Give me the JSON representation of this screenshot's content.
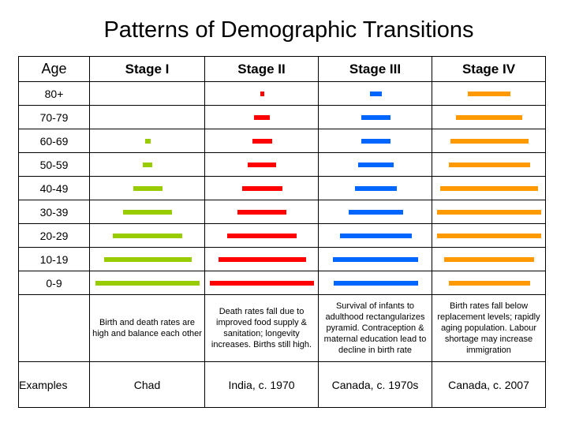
{
  "title": "Patterns of Demographic Transitions",
  "header": {
    "age_label": "Age"
  },
  "stages": [
    {
      "name": "Stage I",
      "color": "#99cc00",
      "description": "Birth and death rates are high and balance each other",
      "example": "Chad",
      "bars": [
        null,
        null,
        0.05,
        0.09,
        0.28,
        0.47,
        0.67,
        0.84,
        1.0
      ]
    },
    {
      "name": "Stage II",
      "color": "#ff0000",
      "description": "Death rates fall due to improved food supply & sanitation; longevity increases. Births still high.",
      "example": "India, c. 1970",
      "bars": [
        0.04,
        0.15,
        0.19,
        0.27,
        0.39,
        0.47,
        0.67,
        0.84,
        1.0
      ]
    },
    {
      "name": "Stage III",
      "color": "#0066ff",
      "description": "Survival of infants to adulthood rectangularizes pyramid. Contraception & maternal education lead to decline in birth rate",
      "example": "Canada, c. 1970s",
      "bars": [
        0.11,
        0.28,
        0.28,
        0.34,
        0.4,
        0.52,
        0.69,
        0.82,
        0.81
      ]
    },
    {
      "name": "Stage IV",
      "color": "#ff9900",
      "description": "Birth rates fall below replacement levels; rapidly aging population. Labour shortage may increase immigration",
      "example": "Canada, c. 2007",
      "bars": [
        0.41,
        0.64,
        0.75,
        0.78,
        0.94,
        1.0,
        1.0,
        0.86,
        0.78
      ]
    }
  ],
  "age_groups": [
    "80+",
    "70-79",
    "60-69",
    "50-59",
    "40-49",
    "30-39",
    "20-29",
    "10-19",
    "0-9"
  ],
  "examples_label": "Examples"
}
